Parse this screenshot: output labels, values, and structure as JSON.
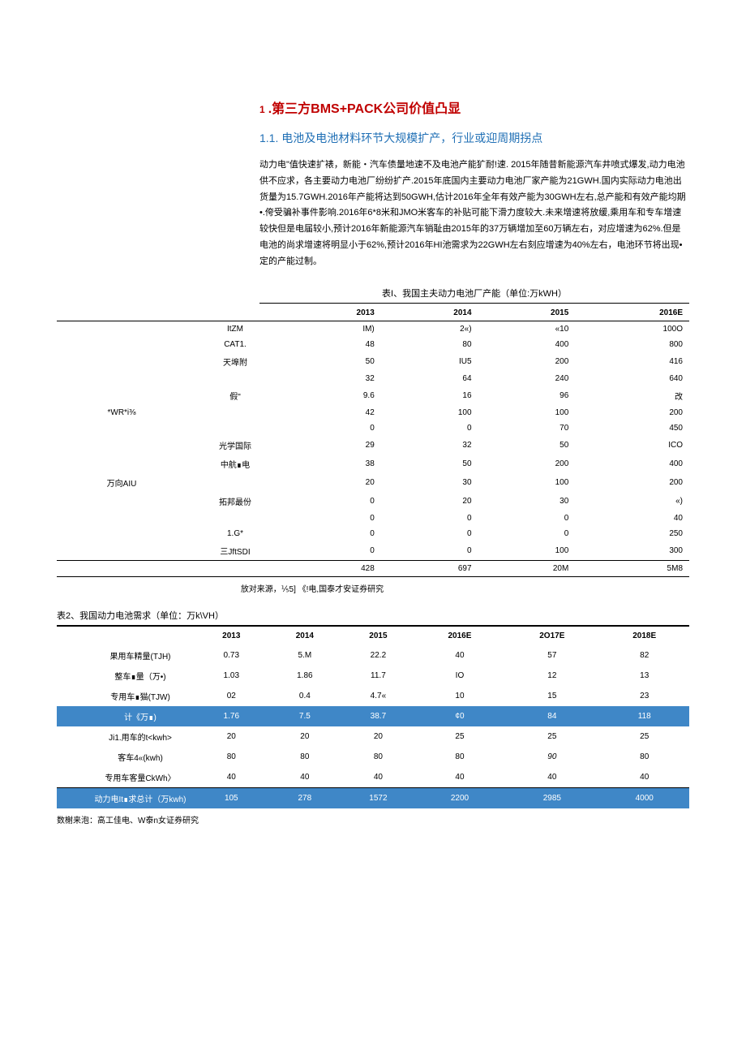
{
  "heading1_num": "1",
  "heading1": ".第三方BMS+PACK公司价值凸显",
  "heading2": "1.1. 电池及电池材料环节大规模扩产，行业或迎周期拐点",
  "paragraph": "动力电\"值快速扩裱，新能・汽车债量地速不及电池产能犷耐!速. 2015年随昔新能源汽车井喷式爆发,动力电池供不应求，各主要动力电池厂纷纷扩产.2015年底国内主要动力电池厂家产能为21GWH.国内实际动力电池出货量为15.7GWH.2016年产能将达到50GWH,估计2016年全年有效产能为30GWH左右,总产能和有效产能均期•.侉受骗补事件影响.2016年6*8米和JMO米客车的补贴可能下滑力度较大.未来增速将放缓,乘用车和专车增速较快但是电届较小,预计2016年新能源汽车销耻由2015年的37万辆增加至60万辆左右，对应增速为62%.但是电池的尚求增速将明显小于62%,预计2016年HI池需求为22GWH左右刻应增速为40%左右，电池环节将出现•定的产能过制。",
  "table1": {
    "caption": "表I、我国主夫动力电池厂产能（单位:万kWH）",
    "years": [
      "2013",
      "2014",
      "2015",
      "2016E"
    ],
    "rows": [
      {
        "a": "",
        "b": "ItZM",
        "v": [
          "IM)",
          "2«)",
          "«10",
          "100O"
        ]
      },
      {
        "a": "",
        "b": "CAT1.",
        "v": [
          "48",
          "80",
          "400",
          "800"
        ]
      },
      {
        "a": "",
        "b": "天埠附",
        "v": [
          "50",
          "IU5",
          "200",
          "416"
        ]
      },
      {
        "a": "",
        "b": "",
        "v": [
          "32",
          "64",
          "240",
          "640"
        ]
      },
      {
        "a": "",
        "b": "假\"",
        "v": [
          "9.6",
          "16",
          "96",
          "改"
        ]
      },
      {
        "a": "*WR*i⅜",
        "b": "",
        "v": [
          "42",
          "100",
          "100",
          "200"
        ]
      },
      {
        "a": "",
        "b": "",
        "v": [
          "0",
          "0",
          "70",
          "450"
        ]
      },
      {
        "a": "",
        "b": "光学国际",
        "v": [
          "29",
          "32",
          "50",
          "ICO"
        ]
      },
      {
        "a": "",
        "b": "中航∎电",
        "v": [
          "38",
          "50",
          "200",
          "400"
        ]
      },
      {
        "a": "万向AIU",
        "b": "",
        "v": [
          "20",
          "30",
          "100",
          "200"
        ]
      },
      {
        "a": "",
        "b": "拓邦最份",
        "v": [
          "0",
          "20",
          "30",
          "«)"
        ]
      },
      {
        "a": "",
        "b": "",
        "v": [
          "0",
          "0",
          "0",
          "40"
        ]
      },
      {
        "a": "",
        "b": "1.G*",
        "v": [
          "0",
          "0",
          "0",
          "250"
        ]
      },
      {
        "a": "",
        "b": "三JftSDI",
        "v": [
          "0",
          "0",
          "100",
          "300"
        ]
      },
      {
        "a": "",
        "b": "",
        "v": [
          "428",
          "697",
          "20M",
          "5M8"
        ],
        "last": true
      }
    ],
    "source": "放对来源，⅕5]  《!电,国泰才安证券研究"
  },
  "table2": {
    "caption": "表2、我国动力电池需求（单位：万k\\VH）",
    "years": [
      "2013",
      "2014",
      "2015",
      "2016E",
      "2O17E",
      "2018E"
    ],
    "rows": [
      {
        "lbl": "果用车精量(TJH)",
        "v": [
          "0.73",
          "5.M",
          "22.2",
          "40",
          "57",
          "82"
        ]
      },
      {
        "lbl": "整车∎量（万•)",
        "v": [
          "1.03",
          "1.86",
          "11.7",
          "IO",
          "12",
          "13"
        ]
      },
      {
        "lbl": "专用车∎猫(TJW)",
        "v": [
          "02",
          "0.4",
          "4.7«",
          "10",
          "15",
          "23"
        ]
      },
      {
        "lbl": "计《万∎)",
        "v": [
          "1.76",
          "7.5",
          "38.7",
          "¢0",
          "84",
          "118"
        ],
        "hl": true
      },
      {
        "lbl": "Ji1.用车的t<kwh>",
        "v": [
          "20",
          "20",
          "20",
          "25",
          "25",
          "25"
        ]
      },
      {
        "lbl": "客车4«(kwh)",
        "v": [
          "80",
          "80",
          "80",
          "80",
          "90",
          "80"
        ],
        "it5": true
      },
      {
        "lbl": "专用车客量CkWh〉",
        "v": [
          "40",
          "40",
          "40",
          "40",
          "40",
          "40"
        ],
        "sep": true
      },
      {
        "lbl": "动力电It∎求总计（万kwh)",
        "v": [
          "105",
          "278",
          "1572",
          "2200",
          "2985",
          "4000"
        ],
        "hl": true
      }
    ],
    "source": "数榭来泡：高工佳电、W泰n女证券研究"
  },
  "colors": {
    "h1": "#c00000",
    "h2": "#1f6fb5",
    "highlight_bg": "#3f87c7",
    "highlight_fg": "#ffffff"
  }
}
